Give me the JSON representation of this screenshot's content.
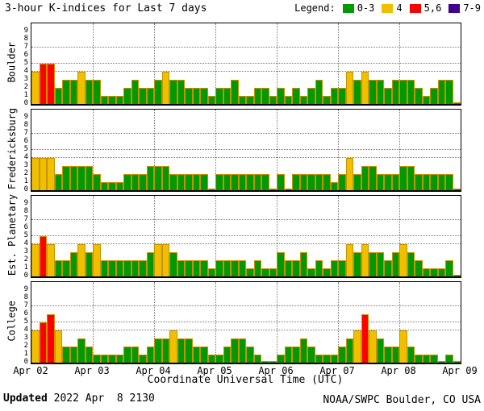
{
  "title": "3-hour K-indices for Last 7 days",
  "legend_label": "Legend:",
  "xaxis_label": "Coordinate Universal Time (UTC)",
  "footer": {
    "updated_label": "Updated",
    "updated_value": " 2022 Apr  8 2130",
    "credit": "NOAA/SWPC Boulder, CO USA"
  },
  "chart_data": {
    "type": "bar",
    "title": "3-hour K-indices for Last 7 days",
    "xlabel": "Coordinate Universal Time (UTC)",
    "ylim": [
      0,
      9
    ],
    "y_ticks": [
      0,
      1,
      2,
      3,
      4,
      5,
      6,
      7,
      8,
      9
    ],
    "y_reference_lines": [
      4,
      5,
      7
    ],
    "x_ticks": [
      "Apr 02",
      "Apr 03",
      "Apr 04",
      "Apr 05",
      "Apr 06",
      "Apr 07",
      "Apr 08",
      "Apr 09"
    ],
    "bars_per_day": 8,
    "bar_interval_hours": 3,
    "grid": true,
    "legend_position": "top-right",
    "legend": [
      {
        "label": "0-3",
        "color": "#009900",
        "range": [
          0,
          3
        ]
      },
      {
        "label": "4",
        "color": "#f0c000",
        "range": [
          4,
          4
        ]
      },
      {
        "label": "5,6",
        "color": "#ff0000",
        "range": [
          5,
          6
        ]
      },
      {
        "label": "7-9",
        "color": "#400090",
        "range": [
          7,
          9
        ]
      }
    ],
    "panels": [
      {
        "station": "Boulder",
        "values": [
          4,
          5,
          5,
          2,
          3,
          3,
          4,
          3,
          3,
          1,
          1,
          1,
          2,
          3,
          2,
          2,
          3,
          4,
          3,
          3,
          2,
          2,
          2,
          1,
          2,
          2,
          3,
          1,
          1,
          2,
          2,
          1,
          2,
          1,
          2,
          1,
          2,
          3,
          1,
          2,
          2,
          4,
          3,
          4,
          3,
          3,
          2,
          3,
          3,
          3,
          2,
          1,
          2,
          3,
          3,
          0
        ]
      },
      {
        "station": "Fredericksburg",
        "values": [
          4,
          4,
          4,
          2,
          3,
          3,
          3,
          3,
          2,
          1,
          1,
          1,
          2,
          2,
          2,
          3,
          3,
          3,
          2,
          2,
          2,
          2,
          2,
          0,
          2,
          2,
          2,
          2,
          2,
          2,
          2,
          0,
          2,
          0,
          2,
          2,
          2,
          2,
          2,
          1,
          2,
          4,
          2,
          3,
          3,
          2,
          2,
          2,
          3,
          3,
          2,
          2,
          2,
          2,
          2,
          0
        ]
      },
      {
        "station": "Est. Planetary",
        "values": [
          4,
          5,
          4,
          2,
          2,
          3,
          4,
          3,
          4,
          2,
          2,
          2,
          2,
          2,
          2,
          3,
          4,
          4,
          3,
          2,
          2,
          2,
          2,
          1,
          2,
          2,
          2,
          2,
          1,
          2,
          1,
          1,
          3,
          2,
          2,
          3,
          1,
          2,
          1,
          2,
          2,
          4,
          3,
          4,
          3,
          3,
          2,
          3,
          4,
          3,
          2,
          1,
          1,
          1,
          2,
          0
        ]
      },
      {
        "station": "College",
        "values": [
          4,
          5,
          6,
          4,
          2,
          2,
          3,
          2,
          1,
          1,
          1,
          1,
          2,
          2,
          1,
          2,
          3,
          3,
          4,
          3,
          3,
          2,
          2,
          1,
          1,
          2,
          3,
          3,
          2,
          1,
          0,
          0,
          1,
          2,
          2,
          3,
          2,
          1,
          1,
          1,
          2,
          3,
          4,
          6,
          4,
          3,
          2,
          2,
          4,
          2,
          1,
          1,
          1,
          0,
          1,
          0
        ]
      }
    ]
  }
}
